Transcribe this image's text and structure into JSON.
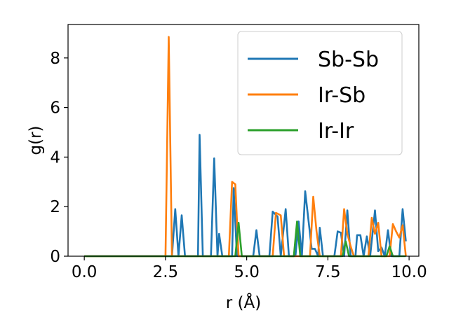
{
  "chart_data": {
    "type": "line",
    "xlabel": "r (Å)",
    "ylabel": "g(r)",
    "xlim": [
      -0.5,
      10.3
    ],
    "ylim": [
      0,
      9.35
    ],
    "xticks": [
      0.0,
      2.5,
      5.0,
      7.5,
      10.0
    ],
    "xtick_labels": [
      "0.0",
      "2.5",
      "5.0",
      "7.5",
      "10.0"
    ],
    "yticks": [
      0,
      2,
      4,
      6,
      8
    ],
    "ytick_labels": [
      "0",
      "2",
      "4",
      "6",
      "8"
    ],
    "grid": false,
    "legend_position": "top-right",
    "series": [
      {
        "name": "Sb-Sb",
        "color": "#1f77b4",
        "points": [
          [
            0.0,
            0
          ],
          [
            2.7,
            0
          ],
          [
            2.8,
            1.9
          ],
          [
            2.9,
            0
          ],
          [
            3.0,
            1.65
          ],
          [
            3.1,
            0
          ],
          [
            3.5,
            0
          ],
          [
            3.55,
            4.9
          ],
          [
            3.65,
            0
          ],
          [
            3.9,
            0
          ],
          [
            4.0,
            3.95
          ],
          [
            4.1,
            0
          ],
          [
            4.15,
            0.9
          ],
          [
            4.25,
            0
          ],
          [
            4.55,
            0
          ],
          [
            4.6,
            2.75
          ],
          [
            4.7,
            0
          ],
          [
            5.2,
            0
          ],
          [
            5.3,
            1.05
          ],
          [
            5.4,
            0
          ],
          [
            5.7,
            0
          ],
          [
            5.8,
            1.8
          ],
          [
            5.95,
            1.6
          ],
          [
            6.05,
            0
          ],
          [
            6.2,
            1.9
          ],
          [
            6.3,
            0
          ],
          [
            6.5,
            0
          ],
          [
            6.6,
            1.4
          ],
          [
            6.7,
            0
          ],
          [
            6.8,
            2.62
          ],
          [
            6.95,
            0.9
          ],
          [
            7.0,
            0.3
          ],
          [
            7.1,
            0.3
          ],
          [
            7.2,
            0
          ],
          [
            7.25,
            1.15
          ],
          [
            7.35,
            0
          ],
          [
            7.7,
            0
          ],
          [
            7.8,
            1.0
          ],
          [
            7.9,
            0.95
          ],
          [
            8.0,
            0
          ],
          [
            8.1,
            1.85
          ],
          [
            8.2,
            0
          ],
          [
            8.35,
            0
          ],
          [
            8.4,
            0.85
          ],
          [
            8.5,
            0.85
          ],
          [
            8.6,
            0
          ],
          [
            8.7,
            0.8
          ],
          [
            8.8,
            0
          ],
          [
            8.95,
            1.85
          ],
          [
            9.05,
            0.2
          ],
          [
            9.15,
            0.35
          ],
          [
            9.25,
            0
          ],
          [
            9.35,
            1.05
          ],
          [
            9.45,
            0
          ],
          [
            9.7,
            0
          ],
          [
            9.8,
            1.9
          ],
          [
            9.9,
            0.6
          ]
        ]
      },
      {
        "name": "Ir-Sb",
        "color": "#ff7f0e",
        "points": [
          [
            0.0,
            0
          ],
          [
            2.5,
            0
          ],
          [
            2.6,
            8.85
          ],
          [
            2.7,
            0
          ],
          [
            4.45,
            0
          ],
          [
            4.55,
            3.0
          ],
          [
            4.65,
            2.9
          ],
          [
            4.75,
            0
          ],
          [
            5.8,
            0
          ],
          [
            5.9,
            1.75
          ],
          [
            6.05,
            1.65
          ],
          [
            6.15,
            0
          ],
          [
            6.95,
            0
          ],
          [
            7.05,
            2.4
          ],
          [
            7.15,
            1.0
          ],
          [
            7.25,
            0
          ],
          [
            7.9,
            0
          ],
          [
            8.0,
            1.9
          ],
          [
            8.1,
            0.9
          ],
          [
            8.2,
            0.4
          ],
          [
            8.3,
            0
          ],
          [
            8.75,
            0
          ],
          [
            8.85,
            1.55
          ],
          [
            8.95,
            0.9
          ],
          [
            9.05,
            1.35
          ],
          [
            9.15,
            0
          ],
          [
            9.4,
            0
          ],
          [
            9.5,
            1.3
          ],
          [
            9.6,
            1.0
          ],
          [
            9.7,
            0.75
          ],
          [
            9.8,
            1.25
          ],
          [
            9.9,
            0
          ]
        ]
      },
      {
        "name": "Ir-Ir",
        "color": "#2ca02c",
        "points": [
          [
            0.0,
            0
          ],
          [
            4.65,
            0
          ],
          [
            4.75,
            1.35
          ],
          [
            4.85,
            0
          ],
          [
            6.45,
            0
          ],
          [
            6.55,
            1.4
          ],
          [
            6.65,
            0
          ],
          [
            7.95,
            0
          ],
          [
            8.05,
            0.6
          ],
          [
            8.15,
            0
          ],
          [
            9.3,
            0
          ],
          [
            9.4,
            0.4
          ],
          [
            9.5,
            0
          ],
          [
            9.9,
            0
          ]
        ]
      }
    ]
  }
}
